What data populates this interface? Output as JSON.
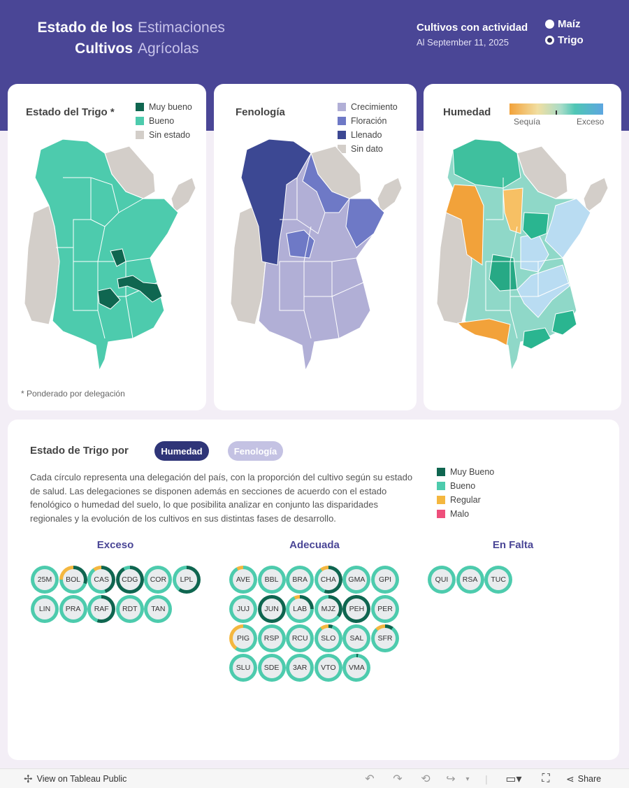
{
  "header": {
    "title_bold_1": "Estado de los",
    "title_bold_2": "Cultivos",
    "title_light_1": "Estimaciones",
    "title_light_2": "Agrícolas",
    "activity_label": "Cultivos con actividad",
    "date_label": "Al September 11, 2025",
    "crop_options": [
      {
        "label": "Maíz",
        "selected": false
      },
      {
        "label": "Trigo",
        "selected": true
      }
    ]
  },
  "colors": {
    "header_bg": "#4a4696",
    "muy_bueno": "#0f6650",
    "bueno": "#4dcbad",
    "sin_estado": "#d3cec9",
    "crecimiento": "#b1afd6",
    "floracion": "#6e79c6",
    "llenado": "#3c4893",
    "regular": "#f4b73f",
    "malo": "#ee4f7b",
    "sequia": "#f2a23a",
    "exceso": "#5da6e0"
  },
  "cards": {
    "estado": {
      "title": "Estado del Trigo *",
      "legend": [
        "Muy bueno",
        "Bueno",
        "Sin estado"
      ],
      "footnote": "* Ponderado por delegación"
    },
    "fenologia": {
      "title": "Fenología",
      "legend": [
        "Crecimiento",
        "Floración",
        "Llenado",
        "Sin dato"
      ]
    },
    "humedad": {
      "title": "Humedad",
      "scale_low": "Sequía",
      "scale_high": "Exceso"
    }
  },
  "bottom": {
    "title": "Estado de Trigo por",
    "pill_humedad": "Humedad",
    "pill_fenologia": "Fenología",
    "description": "Cada círculo representa una delegación del país, con la proporción del cultivo según su estado de salud. Las delegaciones se disponen además en secciones de acuerdo con el estado fenológico o humedad del suelo, lo que posibilita analizar en conjunto las disparidades regionales y la evolución de los cultivos en sus distintas fases de desarrollo.",
    "legend": [
      "Muy Bueno",
      "Bueno",
      "Regular",
      "Malo"
    ],
    "groups": [
      {
        "title": "Exceso",
        "items": [
          {
            "code": "25M",
            "mb": 0,
            "b": 100,
            "r": 0
          },
          {
            "code": "BOL",
            "mb": 30,
            "b": 45,
            "r": 25
          },
          {
            "code": "CAS",
            "mb": 45,
            "b": 45,
            "r": 10
          },
          {
            "code": "CDG",
            "mb": 92,
            "b": 8,
            "r": 0
          },
          {
            "code": "COR",
            "mb": 0,
            "b": 100,
            "r": 0
          },
          {
            "code": "LPL",
            "mb": 60,
            "b": 40,
            "r": 0
          },
          {
            "code": "LIN",
            "mb": 0,
            "b": 100,
            "r": 0
          },
          {
            "code": "PRA",
            "mb": 0,
            "b": 100,
            "r": 0
          },
          {
            "code": "RAF",
            "mb": 55,
            "b": 45,
            "r": 0
          },
          {
            "code": "RDT",
            "mb": 0,
            "b": 100,
            "r": 0
          },
          {
            "code": "TAN",
            "mb": 0,
            "b": 100,
            "r": 0
          }
        ]
      },
      {
        "title": "Adecuada",
        "items": [
          {
            "code": "AVE",
            "mb": 0,
            "b": 92,
            "r": 8
          },
          {
            "code": "BBL",
            "mb": 0,
            "b": 100,
            "r": 0
          },
          {
            "code": "BRA",
            "mb": 0,
            "b": 100,
            "r": 0
          },
          {
            "code": "CHA",
            "mb": 55,
            "b": 35,
            "r": 10
          },
          {
            "code": "GMA",
            "mb": 0,
            "b": 100,
            "r": 0
          },
          {
            "code": "GPI",
            "mb": 0,
            "b": 100,
            "r": 0
          },
          {
            "code": "JUJ",
            "mb": 0,
            "b": 100,
            "r": 0
          },
          {
            "code": "JUN",
            "mb": 100,
            "b": 0,
            "r": 0
          },
          {
            "code": "LAB",
            "mb": 25,
            "b": 68,
            "r": 7
          },
          {
            "code": "MJZ",
            "mb": 35,
            "b": 65,
            "r": 0
          },
          {
            "code": "PEH",
            "mb": 100,
            "b": 0,
            "r": 0
          },
          {
            "code": "PER",
            "mb": 0,
            "b": 100,
            "r": 0
          },
          {
            "code": "PIG",
            "mb": 0,
            "b": 60,
            "r": 40
          },
          {
            "code": "RSP",
            "mb": 0,
            "b": 100,
            "r": 0
          },
          {
            "code": "RCU",
            "mb": 0,
            "b": 100,
            "r": 0
          },
          {
            "code": "SLO",
            "mb": 5,
            "b": 85,
            "r": 10
          },
          {
            "code": "SAL",
            "mb": 0,
            "b": 100,
            "r": 0
          },
          {
            "code": "SFR",
            "mb": 10,
            "b": 78,
            "r": 12
          },
          {
            "code": "SLU",
            "mb": 0,
            "b": 100,
            "r": 0
          },
          {
            "code": "SDE",
            "mb": 0,
            "b": 100,
            "r": 0
          },
          {
            "code": "3AR",
            "mb": 0,
            "b": 100,
            "r": 0
          },
          {
            "code": "VTO",
            "mb": 0,
            "b": 100,
            "r": 0
          },
          {
            "code": "VMA",
            "mb": 2,
            "b": 98,
            "r": 0
          }
        ]
      },
      {
        "title": "En Falta",
        "items": [
          {
            "code": "QUI",
            "mb": 0,
            "b": 100,
            "r": 0
          },
          {
            "code": "RSA",
            "mb": 0,
            "b": 100,
            "r": 0
          },
          {
            "code": "TUC",
            "mb": 0,
            "b": 100,
            "r": 0
          }
        ]
      }
    ]
  },
  "footer": {
    "view_label": "View on Tableau Public",
    "share_label": "Share"
  }
}
